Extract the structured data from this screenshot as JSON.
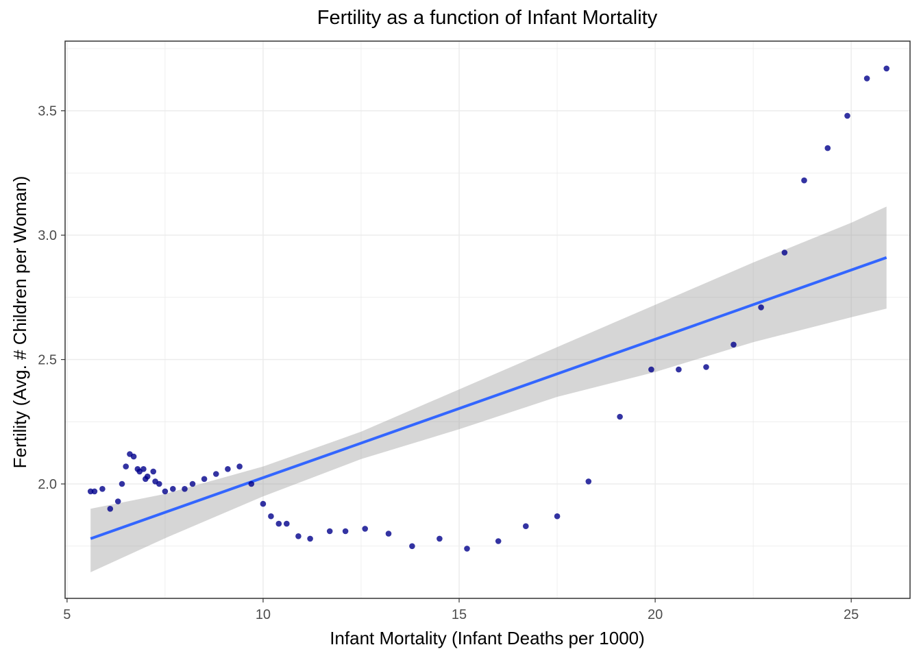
{
  "chart_data": {
    "type": "scatter",
    "title": "Fertility as a function of Infant Mortality",
    "xlabel": "Infant Mortality (Infant Deaths per 1000)",
    "ylabel": "Fertility (Avg. # Children per Woman)",
    "xlim": [
      4.95,
      26.5
    ],
    "ylim": [
      1.54,
      3.78
    ],
    "xticks": [
      5,
      10,
      15,
      20,
      25
    ],
    "yticks": [
      2.0,
      2.5,
      3.0,
      3.5
    ],
    "xtick_labels": [
      "5",
      "10",
      "15",
      "20",
      "25"
    ],
    "ytick_labels": [
      "2.0",
      "2.5",
      "3.0",
      "3.5"
    ],
    "grid": true,
    "colors": {
      "points": "#00008B",
      "fit_line": "#3366FF",
      "confidence_band": "#999999",
      "grid": "#EBEBEB",
      "panel_border": "#333333"
    },
    "points": [
      {
        "x": 5.6,
        "y": 1.97
      },
      {
        "x": 5.7,
        "y": 1.97
      },
      {
        "x": 5.9,
        "y": 1.98
      },
      {
        "x": 6.1,
        "y": 1.9
      },
      {
        "x": 6.3,
        "y": 1.93
      },
      {
        "x": 6.4,
        "y": 2.0
      },
      {
        "x": 6.5,
        "y": 2.07
      },
      {
        "x": 6.6,
        "y": 2.12
      },
      {
        "x": 6.7,
        "y": 2.11
      },
      {
        "x": 6.8,
        "y": 2.06
      },
      {
        "x": 6.85,
        "y": 2.05
      },
      {
        "x": 6.95,
        "y": 2.06
      },
      {
        "x": 7.0,
        "y": 2.02
      },
      {
        "x": 7.05,
        "y": 2.03
      },
      {
        "x": 7.2,
        "y": 2.05
      },
      {
        "x": 7.25,
        "y": 2.01
      },
      {
        "x": 7.35,
        "y": 2.0
      },
      {
        "x": 7.5,
        "y": 1.97
      },
      {
        "x": 7.7,
        "y": 1.98
      },
      {
        "x": 8.0,
        "y": 1.98
      },
      {
        "x": 8.2,
        "y": 2.0
      },
      {
        "x": 8.5,
        "y": 2.02
      },
      {
        "x": 8.8,
        "y": 2.04
      },
      {
        "x": 9.1,
        "y": 2.06
      },
      {
        "x": 9.4,
        "y": 2.07
      },
      {
        "x": 9.7,
        "y": 2.0
      },
      {
        "x": 10.0,
        "y": 1.92
      },
      {
        "x": 10.2,
        "y": 1.87
      },
      {
        "x": 10.4,
        "y": 1.84
      },
      {
        "x": 10.6,
        "y": 1.84
      },
      {
        "x": 10.9,
        "y": 1.79
      },
      {
        "x": 11.2,
        "y": 1.78
      },
      {
        "x": 11.7,
        "y": 1.81
      },
      {
        "x": 12.1,
        "y": 1.81
      },
      {
        "x": 12.6,
        "y": 1.82
      },
      {
        "x": 13.2,
        "y": 1.8
      },
      {
        "x": 13.8,
        "y": 1.75
      },
      {
        "x": 14.5,
        "y": 1.78
      },
      {
        "x": 15.2,
        "y": 1.74
      },
      {
        "x": 16.0,
        "y": 1.77
      },
      {
        "x": 16.7,
        "y": 1.83
      },
      {
        "x": 17.5,
        "y": 1.87
      },
      {
        "x": 18.3,
        "y": 2.01
      },
      {
        "x": 19.1,
        "y": 2.27
      },
      {
        "x": 19.9,
        "y": 2.46
      },
      {
        "x": 20.6,
        "y": 2.46
      },
      {
        "x": 21.3,
        "y": 2.47
      },
      {
        "x": 22.0,
        "y": 2.56
      },
      {
        "x": 22.7,
        "y": 2.71
      },
      {
        "x": 23.3,
        "y": 2.93
      },
      {
        "x": 23.8,
        "y": 3.22
      },
      {
        "x": 24.4,
        "y": 3.35
      },
      {
        "x": 24.9,
        "y": 3.48
      },
      {
        "x": 25.4,
        "y": 3.63
      },
      {
        "x": 25.9,
        "y": 3.67
      }
    ],
    "fit": {
      "method": "linear",
      "x": [
        5.6,
        25.9
      ],
      "y": [
        1.78,
        2.91
      ],
      "band_x": [
        5.6,
        7.5,
        10,
        12.5,
        15,
        17.5,
        20,
        22.5,
        25,
        25.9
      ],
      "band_lower": [
        1.645,
        1.782,
        1.95,
        2.1,
        2.22,
        2.35,
        2.45,
        2.57,
        2.67,
        2.705
      ],
      "band_upper": [
        1.9,
        1.96,
        2.07,
        2.21,
        2.38,
        2.55,
        2.72,
        2.89,
        3.05,
        3.115
      ]
    }
  }
}
